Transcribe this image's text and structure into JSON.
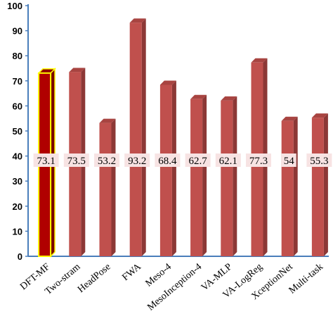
{
  "chart_data": {
    "type": "bar",
    "categories": [
      "DFT-MF",
      "Two-stram",
      "HeadPose",
      "FWA",
      "Meso-4",
      "MesoInception-4",
      "VA-MLP",
      "VA-LogReg",
      "XceptionNet",
      "Multi-task"
    ],
    "values": [
      73.1,
      73.5,
      53.2,
      93.2,
      68.4,
      62.7,
      62.1,
      77.3,
      54,
      55.3
    ],
    "value_labels": [
      "73.1",
      "73.5",
      "53.2",
      "93.2",
      "68.4",
      "62.7",
      "62.1",
      "77.3",
      "54",
      "55.3"
    ],
    "ylim": [
      0,
      100
    ],
    "yticks": [
      "0",
      "10",
      "20",
      "30",
      "40",
      "50",
      "60",
      "70",
      "80",
      "90",
      "100"
    ],
    "grid": false,
    "legend": "none",
    "highlight_index": 0,
    "colors": {
      "bar_front": "#c0504d",
      "bar_side": "#8c3836",
      "bar_top": "#a84441",
      "highlight_front": "#b00000",
      "highlight_edge": "#ffff00",
      "label_bg": "#f7e3e3",
      "axis": "#4a7ebb"
    }
  }
}
